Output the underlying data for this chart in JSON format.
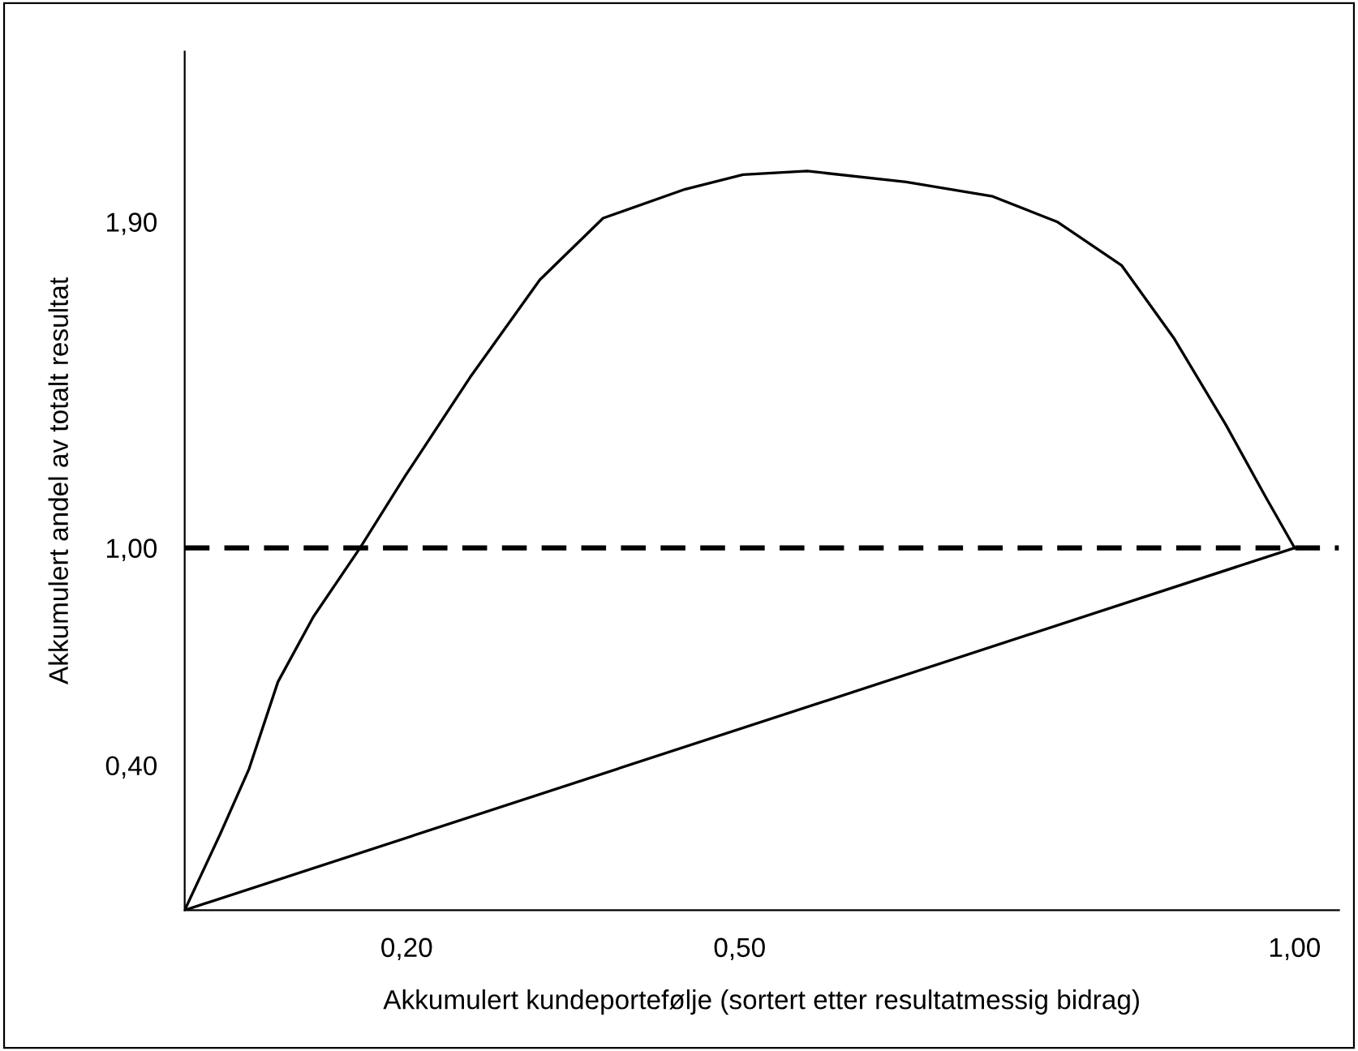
{
  "chart_data": {
    "type": "line",
    "xlabel": "Akkumulert kundeportefølje (sortert etter resultatmessig bidrag)",
    "ylabel": "Akkumulert andel av totalt resultat",
    "series": [
      {
        "color": "#000000",
        "x": [
          0,
          0.032,
          0.058,
          0.084,
          0.116,
          0.158,
          0.199,
          0.257,
          0.32,
          0.377,
          0.451,
          0.503,
          0.561,
          0.65,
          0.728,
          0.786,
          0.844,
          0.891,
          0.938,
          0.974,
          1.0
        ],
        "values": [
          0,
          0.21,
          0.39,
          0.63,
          0.81,
          1.0,
          1.2,
          1.47,
          1.74,
          1.91,
          1.99,
          2.03,
          2.04,
          2.01,
          1.97,
          1.9,
          1.78,
          1.58,
          1.34,
          1.14,
          1.0
        ]
      },
      {
        "color": "#000000",
        "x": [
          0,
          1.0
        ],
        "values": [
          0,
          1.0
        ]
      }
    ],
    "ref_lines": [
      {
        "axis": "y",
        "value": 1.0,
        "color": "#000000",
        "line_style": "dashed"
      }
    ],
    "xlim": [
      0,
      1.04
    ],
    "ylim": [
      0,
      2.37
    ],
    "xticks": [
      {
        "value": 0.2,
        "label": "0,20"
      },
      {
        "value": 0.5,
        "label": "0,50"
      },
      {
        "value": 1.0,
        "label": "1,00"
      }
    ],
    "yticks": [
      {
        "value": 0.4,
        "label": "0,40"
      },
      {
        "value": 1.0,
        "label": "1,00"
      },
      {
        "value": 1.9,
        "label": "1,90"
      }
    ],
    "grid": false,
    "legend": false,
    "marker": "none",
    "line_style": "solid"
  }
}
